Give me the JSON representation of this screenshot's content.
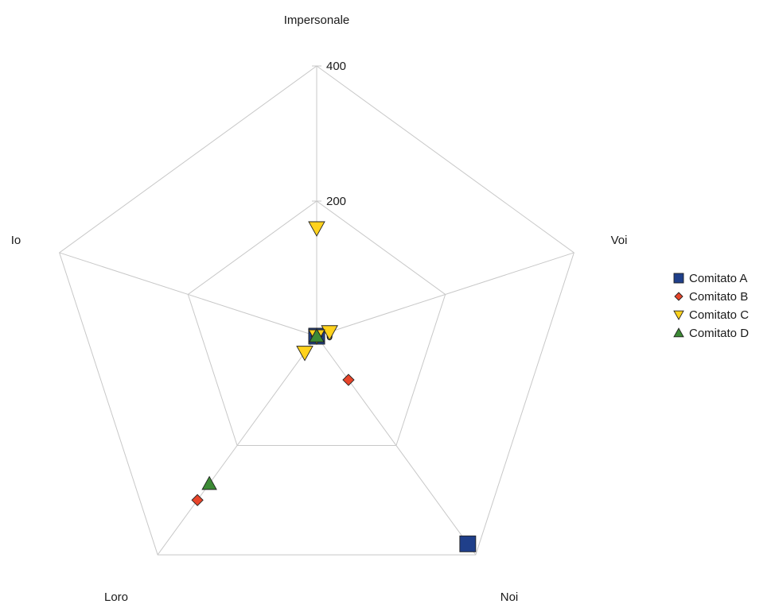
{
  "chart_data": {
    "type": "radar",
    "axes": [
      "Impersonale",
      "Voi",
      "Noi",
      "Loro",
      "Io"
    ],
    "rmax": 400,
    "ticks": [
      0,
      200,
      400
    ],
    "tick_labels": [
      "0",
      "200",
      "400"
    ],
    "grid": true,
    "legend_position": "right",
    "series": [
      {
        "name": "Comitato A",
        "marker": "square",
        "color": "#1f3f8a",
        "values": [
          0,
          0,
          380,
          0,
          0
        ]
      },
      {
        "name": "Comitato B",
        "marker": "diamond",
        "color": "#e8452a",
        "values": [
          0,
          0,
          80,
          300,
          0
        ]
      },
      {
        "name": "Comitato C",
        "marker": "triangle-down",
        "color": "#ffd21c",
        "values": [
          160,
          20,
          0,
          30,
          0
        ]
      },
      {
        "name": "Comitato D",
        "marker": "triangle-up",
        "color": "#3c8a35",
        "values": [
          0,
          0,
          0,
          270,
          0
        ]
      }
    ]
  }
}
